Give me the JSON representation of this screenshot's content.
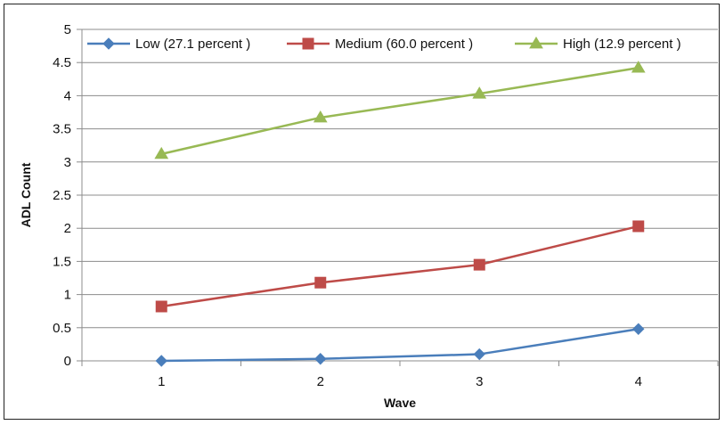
{
  "chart_data": {
    "type": "line",
    "title": "",
    "xlabel": "Wave",
    "ylabel": "ADL Count",
    "categories": [
      "1",
      "2",
      "3",
      "4"
    ],
    "ylim": [
      0,
      5
    ],
    "yticks": [
      "0",
      "0.5",
      "1",
      "1.5",
      "2",
      "2.5",
      "3",
      "3.5",
      "4",
      "4.5",
      "5"
    ],
    "grid": true,
    "legend_position": "top",
    "series": [
      {
        "name": "Low (27.1 percent )",
        "values": [
          0.0,
          0.03,
          0.1,
          0.48
        ],
        "color": "#4a7ebb",
        "marker": "diamond"
      },
      {
        "name": "Medium (60.0 percent )",
        "values": [
          0.82,
          1.18,
          1.45,
          2.03
        ],
        "color": "#be4b48",
        "marker": "square"
      },
      {
        "name": "High (12.9 percent )",
        "values": [
          3.12,
          3.67,
          4.03,
          4.42
        ],
        "color": "#98b954",
        "marker": "triangle"
      }
    ]
  }
}
